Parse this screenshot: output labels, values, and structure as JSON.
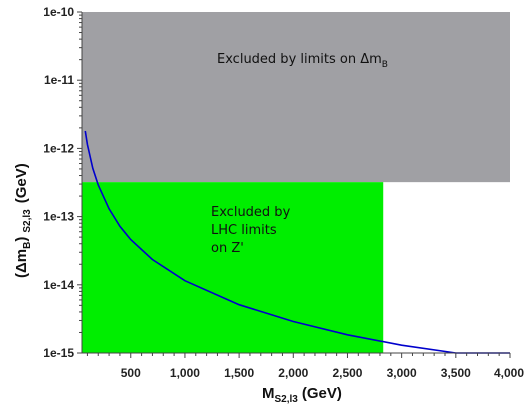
{
  "chart_data": {
    "type": "line",
    "xlabel": {
      "main": "M",
      "sub": "S2,l3",
      "unit": "(GeV)"
    },
    "ylabel": {
      "open": "(Δm",
      "sub": "B",
      "close": ")",
      "sub2": "S2,l3",
      "unit": "(GeV)"
    },
    "log_y": true,
    "xlim": [
      50,
      4000
    ],
    "ylim": [
      1e-15,
      1e-10
    ],
    "x_ticks": [
      500,
      1000,
      1500,
      2000,
      2500,
      3000,
      3500,
      4000
    ],
    "x_tick_labels": [
      "500",
      "1,000",
      "1,500",
      "2,000",
      "2,500",
      "3,000",
      "3,500",
      "4,000"
    ],
    "y_ticks": [
      1e-15,
      1e-14,
      1e-13,
      1e-12,
      1e-11,
      1e-10
    ],
    "y_tick_labels": [
      "1e-15",
      "1e-14",
      "1e-13",
      "1e-12",
      "1e-11",
      "1e-10"
    ],
    "grid": false,
    "series": [
      {
        "color": "#0000cc",
        "x": [
          80,
          100,
          150,
          200,
          300,
          400,
          500,
          700,
          1000,
          1500,
          2000,
          2500,
          3000,
          3500,
          4000
        ],
        "y": [
          1.8e-12,
          1.15e-12,
          5.1e-13,
          2.9e-13,
          1.3e-13,
          7.2e-14,
          4.6e-14,
          2.35e-14,
          1.15e-14,
          5.1e-15,
          2.9e-15,
          1.85e-15,
          1.3e-15,
          1e-15,
          7.6e-16
        ]
      }
    ],
    "regions": [
      {
        "color": "#a0a0a4",
        "x_range": [
          50,
          4000
        ],
        "y_range": [
          3.2e-13,
          1e-10
        ],
        "label_lines": [
          "Excluded by limits on Δm",
          "B"
        ]
      },
      {
        "color": "#00ee00",
        "x_range": [
          50,
          2830
        ],
        "y_range": [
          1e-15,
          3.2e-13
        ],
        "label_lines": [
          "Excluded by",
          "LHC limits",
          "on Z'"
        ]
      }
    ]
  }
}
